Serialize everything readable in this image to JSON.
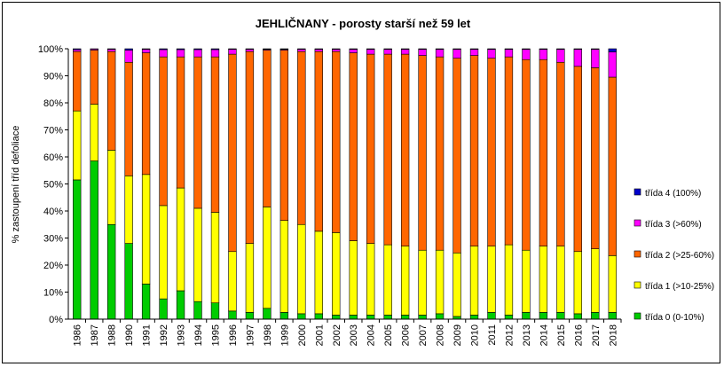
{
  "chart_data": {
    "type": "bar",
    "stacked": true,
    "percent_stacked": true,
    "title": "JEHLIČNANY  - porosty starší než 59 let",
    "ylabel": "% zastoupení tříd defoliace",
    "xlabel": "",
    "ylim": [
      0,
      100
    ],
    "yticks": [
      "0%",
      "10%",
      "20%",
      "30%",
      "40%",
      "50%",
      "60%",
      "70%",
      "80%",
      "90%",
      "100%"
    ],
    "grid": false,
    "legend_position": "right",
    "categories": [
      "1986",
      "1987",
      "1988",
      "1990",
      "1991",
      "1992",
      "1993",
      "1994",
      "1995",
      "1996",
      "1997",
      "1998",
      "1999",
      "2000",
      "2001",
      "2002",
      "2003",
      "2004",
      "2005",
      "2006",
      "2007",
      "2008",
      "2009",
      "2010",
      "2011",
      "2012",
      "2013",
      "2014",
      "2015",
      "2016",
      "2017",
      "2018"
    ],
    "series": [
      {
        "name": "třída 0 (0-10%)",
        "color": "#00cc00",
        "values": [
          51.5,
          58.5,
          35.0,
          28.0,
          13.0,
          7.5,
          10.5,
          6.5,
          6.0,
          3.0,
          2.5,
          4.0,
          2.5,
          2.0,
          2.0,
          1.5,
          1.5,
          1.5,
          1.5,
          1.5,
          1.5,
          2.0,
          1.0,
          1.5,
          2.5,
          1.5,
          2.5,
          2.5,
          2.5,
          2.0,
          2.5,
          2.5
        ]
      },
      {
        "name": "třída 1 (>10-25%)",
        "color": "#ffff00",
        "values": [
          25.5,
          21.0,
          27.5,
          25.0,
          40.5,
          34.5,
          38.0,
          34.5,
          33.5,
          22.0,
          25.5,
          37.5,
          34.0,
          33.0,
          30.5,
          30.5,
          27.5,
          26.5,
          26.0,
          25.5,
          24.0,
          23.5,
          23.5,
          25.5,
          24.5,
          26.0,
          23.0,
          24.5,
          24.5,
          23.0,
          23.5,
          21.0
        ]
      },
      {
        "name": "třída 2 (>25-60%)",
        "color": "#ff6600",
        "values": [
          22.0,
          20.0,
          36.5,
          42.0,
          45.0,
          55.0,
          48.5,
          56.0,
          57.5,
          73.0,
          71.0,
          58.0,
          63.0,
          64.0,
          66.5,
          67.0,
          69.5,
          70.0,
          70.5,
          71.0,
          72.0,
          71.5,
          72.0,
          70.5,
          69.5,
          69.5,
          70.5,
          69.0,
          68.0,
          68.5,
          67.0,
          66.0
        ]
      },
      {
        "name": "třída 3 (>60%)",
        "color": "#ff00ff",
        "values": [
          0.7,
          0.4,
          0.8,
          4.5,
          1.3,
          2.7,
          2.7,
          2.7,
          2.7,
          1.8,
          0.8,
          0.3,
          0.3,
          0.8,
          0.8,
          0.8,
          1.3,
          1.8,
          1.8,
          1.8,
          2.3,
          2.8,
          3.3,
          2.3,
          3.3,
          2.8,
          3.8,
          3.8,
          4.8,
          6.3,
          6.8,
          9.3
        ]
      },
      {
        "name": "třída 4 (100%)",
        "color": "#0000cc",
        "values": [
          0.3,
          0.1,
          0.2,
          0.5,
          0.2,
          0.3,
          0.3,
          0.3,
          0.3,
          0.2,
          0.2,
          0.2,
          0.2,
          0.2,
          0.2,
          0.2,
          0.2,
          0.2,
          0.2,
          0.2,
          0.2,
          0.2,
          0.2,
          0.2,
          0.2,
          0.2,
          0.2,
          0.2,
          0.2,
          0.2,
          0.2,
          1.2
        ]
      }
    ]
  }
}
